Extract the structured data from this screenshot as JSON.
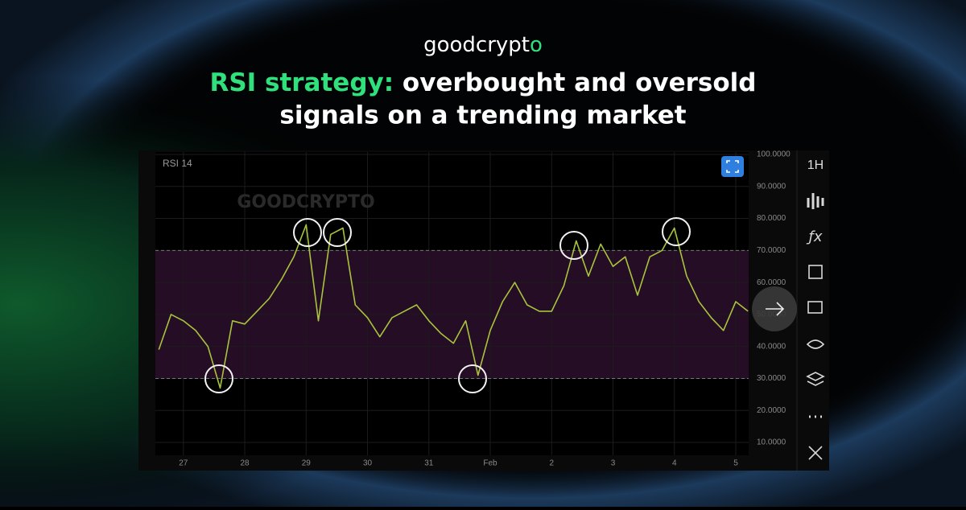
{
  "brand_main": "goodcrypt",
  "brand_accent": "o",
  "title_line1_highlight": "RSI strategy:",
  "title_line1_rest": " overbought and oversold",
  "title_line2": "signals on a trending market",
  "chart_data": {
    "type": "line",
    "indicator_label": "RSI 14",
    "watermark": "GOODCRYPTO",
    "timeframe": "1H",
    "x": [
      -0.4,
      -0.2,
      0,
      0.2,
      0.4,
      0.6,
      0.8,
      1.0,
      1.2,
      1.4,
      1.6,
      1.8,
      2.0,
      2.2,
      2.4,
      2.6,
      2.8,
      3.0,
      3.2,
      3.4,
      3.6,
      3.8,
      4.0,
      4.2,
      4.4,
      4.6,
      4.8,
      5.0,
      5.2,
      5.4,
      5.6,
      5.8,
      6.0,
      6.2,
      6.4,
      6.6,
      6.8,
      7.0,
      7.2,
      7.4,
      7.6,
      7.8,
      8.0,
      8.2,
      8.4,
      8.6,
      8.8,
      9.0,
      9.2
    ],
    "series": [
      {
        "name": "RSI 14",
        "color": "#a9c43c",
        "values": [
          39,
          50,
          48,
          45,
          40,
          27,
          48,
          47,
          51,
          55,
          61,
          68,
          78,
          48,
          75,
          77,
          53,
          49,
          43,
          49,
          51,
          53,
          48,
          44,
          41,
          48,
          31,
          45,
          54,
          60,
          53,
          51,
          51,
          59,
          73,
          62,
          72,
          65,
          68,
          56,
          68,
          70,
          77,
          62,
          54,
          49,
          45,
          54,
          51
        ]
      }
    ],
    "levels": [
      30,
      70
    ],
    "xlim": [
      -0.43,
      9.21
    ],
    "xticks": [
      {
        "value": 0,
        "label": "27"
      },
      {
        "value": 1,
        "label": "28"
      },
      {
        "value": 2,
        "label": "29"
      },
      {
        "value": 3,
        "label": "30"
      },
      {
        "value": 4,
        "label": "31"
      },
      {
        "value": 5,
        "label": "Feb"
      },
      {
        "value": 6,
        "label": "2"
      },
      {
        "value": 7,
        "label": "3"
      },
      {
        "value": 8,
        "label": "4"
      },
      {
        "value": 9,
        "label": "5"
      }
    ],
    "ylim": [
      10,
      100
    ],
    "yticks": [
      {
        "value": 10,
        "label": "10.0000"
      },
      {
        "value": 20,
        "label": "20.0000"
      },
      {
        "value": 30,
        "label": "30.0000"
      },
      {
        "value": 40,
        "label": "40.0000"
      },
      {
        "value": 50,
        "label": "50.0000"
      },
      {
        "value": 60,
        "label": "60.0000"
      },
      {
        "value": 70,
        "label": "70.0000"
      },
      {
        "value": 80,
        "label": "80.0000"
      },
      {
        "value": 90,
        "label": "90.0000"
      },
      {
        "value": 100,
        "label": "100.0000"
      }
    ],
    "grid": true
  }
}
